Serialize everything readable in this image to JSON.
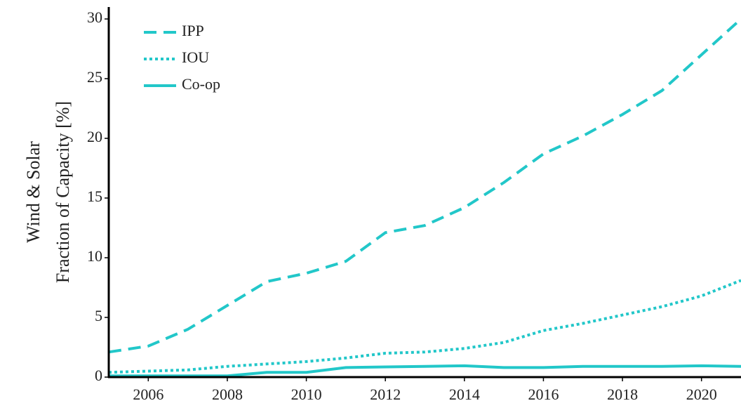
{
  "chart_data": {
    "type": "line",
    "ylabel": [
      "Wind & Solar",
      "Fraction of Capacity [%]"
    ],
    "x": [
      2005,
      2006,
      2007,
      2008,
      2009,
      2010,
      2011,
      2012,
      2013,
      2014,
      2015,
      2016,
      2017,
      2018,
      2019,
      2020,
      2021
    ],
    "series": [
      {
        "name": "IPP",
        "color": "#22c7c9",
        "dash": "dashed",
        "values": [
          2.1,
          2.6,
          4.0,
          6.0,
          8.0,
          8.7,
          9.7,
          12.1,
          12.7,
          14.2,
          16.3,
          18.7,
          20.2,
          22.0,
          24.0,
          27.0,
          30.0
        ]
      },
      {
        "name": "IOU",
        "color": "#22c7c9",
        "dash": "dotted",
        "values": [
          0.4,
          0.5,
          0.6,
          0.9,
          1.1,
          1.3,
          1.6,
          2.0,
          2.1,
          2.4,
          2.9,
          3.9,
          4.5,
          5.2,
          5.9,
          6.8,
          8.1
        ]
      },
      {
        "name": "Co-op",
        "color": "#22c7c9",
        "dash": "solid",
        "values": [
          0.1,
          0.1,
          0.1,
          0.1,
          0.4,
          0.4,
          0.8,
          0.85,
          0.9,
          0.95,
          0.8,
          0.8,
          0.9,
          0.9,
          0.9,
          0.95,
          0.9
        ]
      }
    ],
    "xlim": [
      2005,
      2021
    ],
    "xticks": [
      2006,
      2008,
      2010,
      2012,
      2014,
      2016,
      2018,
      2020
    ],
    "ylim": [
      0,
      31
    ],
    "yticks": [
      0,
      5,
      10,
      15,
      20,
      25,
      30
    ],
    "grid": false,
    "legend": "upper left"
  }
}
